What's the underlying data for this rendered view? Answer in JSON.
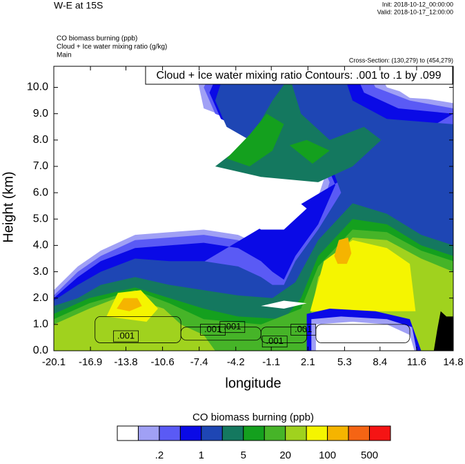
{
  "chart_data": {
    "type": "contour",
    "title": "W-E at 15S",
    "init": "Init: 2018-10-12_00:00:00",
    "valid": "Valid: 2018-10-17_12:00:00",
    "fields": [
      "CO biomass burning   (ppb)",
      "Cloud + Ice water mixing ratio   (g/kg)",
      "Main"
    ],
    "cross_section": "Cross-Section: (130,279) to (454,279)",
    "contour_info": "Cloud + Ice water mixing ratio Contours: .001 to .1 by .099",
    "contour_labels": [
      ".001",
      ".001",
      ".001",
      ".001",
      ".001"
    ],
    "xlabel": "longitude",
    "ylabel": "Height (km)",
    "xlim": [
      -20.1,
      14.8
    ],
    "xticks": [
      -20.1,
      -16.9,
      -13.8,
      -10.6,
      -7.4,
      -4.2,
      -1.1,
      2.1,
      5.3,
      8.4,
      11.6,
      14.8
    ],
    "ylim": [
      0,
      10.8
    ],
    "yticks": [
      {
        "value": 0,
        "label": "0.0"
      },
      {
        "value": 1,
        "label": "1.0"
      },
      {
        "value": 2,
        "label": "2.0"
      },
      {
        "value": 3,
        "label": "3.0"
      },
      {
        "value": 4,
        "label": "4.0"
      },
      {
        "value": 5,
        "label": "5.0"
      },
      {
        "value": 6,
        "label": "6.0"
      },
      {
        "value": 7,
        "label": "7.0"
      },
      {
        "value": 8,
        "label": "8.0"
      },
      {
        "value": 9,
        "label": "9.0"
      },
      {
        "value": 10,
        "label": "10.0"
      }
    ],
    "colorbar": {
      "title": "CO biomass burning  (ppb)",
      "colors": [
        "#ffffff",
        "#a0a0f5",
        "#5a5af5",
        "#0a0ae6",
        "#1e46b4",
        "#14785f",
        "#14a01e",
        "#46b428",
        "#a0d21e",
        "#f5f500",
        "#f5b400",
        "#f56414",
        "#f51414"
      ],
      "labels": [
        {
          "value": 0.2,
          "label": ".2"
        },
        {
          "value": 1,
          "label": "1"
        },
        {
          "value": 5,
          "label": "5"
        },
        {
          "value": 20,
          "label": "20"
        },
        {
          "value": 100,
          "label": "100"
        },
        {
          "value": 500,
          "label": "500"
        }
      ]
    }
  }
}
